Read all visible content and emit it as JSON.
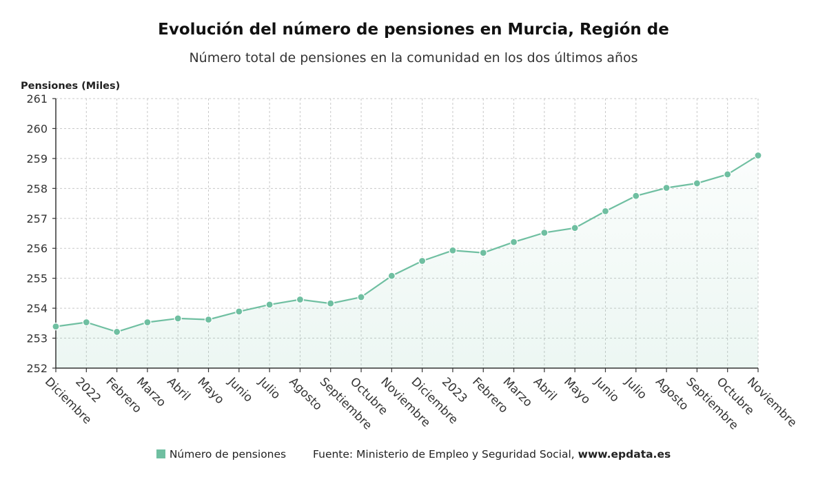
{
  "chart_data": {
    "type": "line",
    "title": "Evolución del número de pensiones en Murcia, Región de",
    "subtitle": "Número total de pensiones en la comunidad en los dos últimos años",
    "ylabel": "Pensiones (Miles)",
    "ylim": [
      252,
      261
    ],
    "yticks": [
      "252",
      "253",
      "254",
      "255",
      "256",
      "257",
      "258",
      "259",
      "260",
      "261"
    ],
    "categories": [
      "Diciembre",
      "2022",
      "Febrero",
      "Marzo",
      "Abril",
      "Mayo",
      "Junio",
      "Julio",
      "Agosto",
      "Septiembre",
      "Octubre",
      "Noviembre",
      "Diciembre",
      "2023",
      "Febrero",
      "Marzo",
      "Abril",
      "Mayo",
      "Junio",
      "Julio",
      "Agosto",
      "Septiembre",
      "Octubre",
      "Noviembre"
    ],
    "series": [
      {
        "name": "Número de pensiones",
        "values": [
          253.39,
          253.53,
          253.21,
          253.53,
          253.66,
          253.62,
          253.89,
          254.12,
          254.29,
          254.16,
          254.37,
          255.08,
          255.58,
          255.93,
          255.85,
          256.21,
          256.52,
          256.68,
          257.24,
          257.75,
          258.02,
          258.17,
          258.47,
          259.1
        ],
        "color": "#6fbfa1"
      }
    ],
    "grid": true,
    "legend": "bottom"
  },
  "footer": {
    "legend_label": "Número de pensiones",
    "source_prefix": "Fuente: Ministerio de Empleo y Seguridad Social, ",
    "source_site": "www.epdata.es"
  }
}
